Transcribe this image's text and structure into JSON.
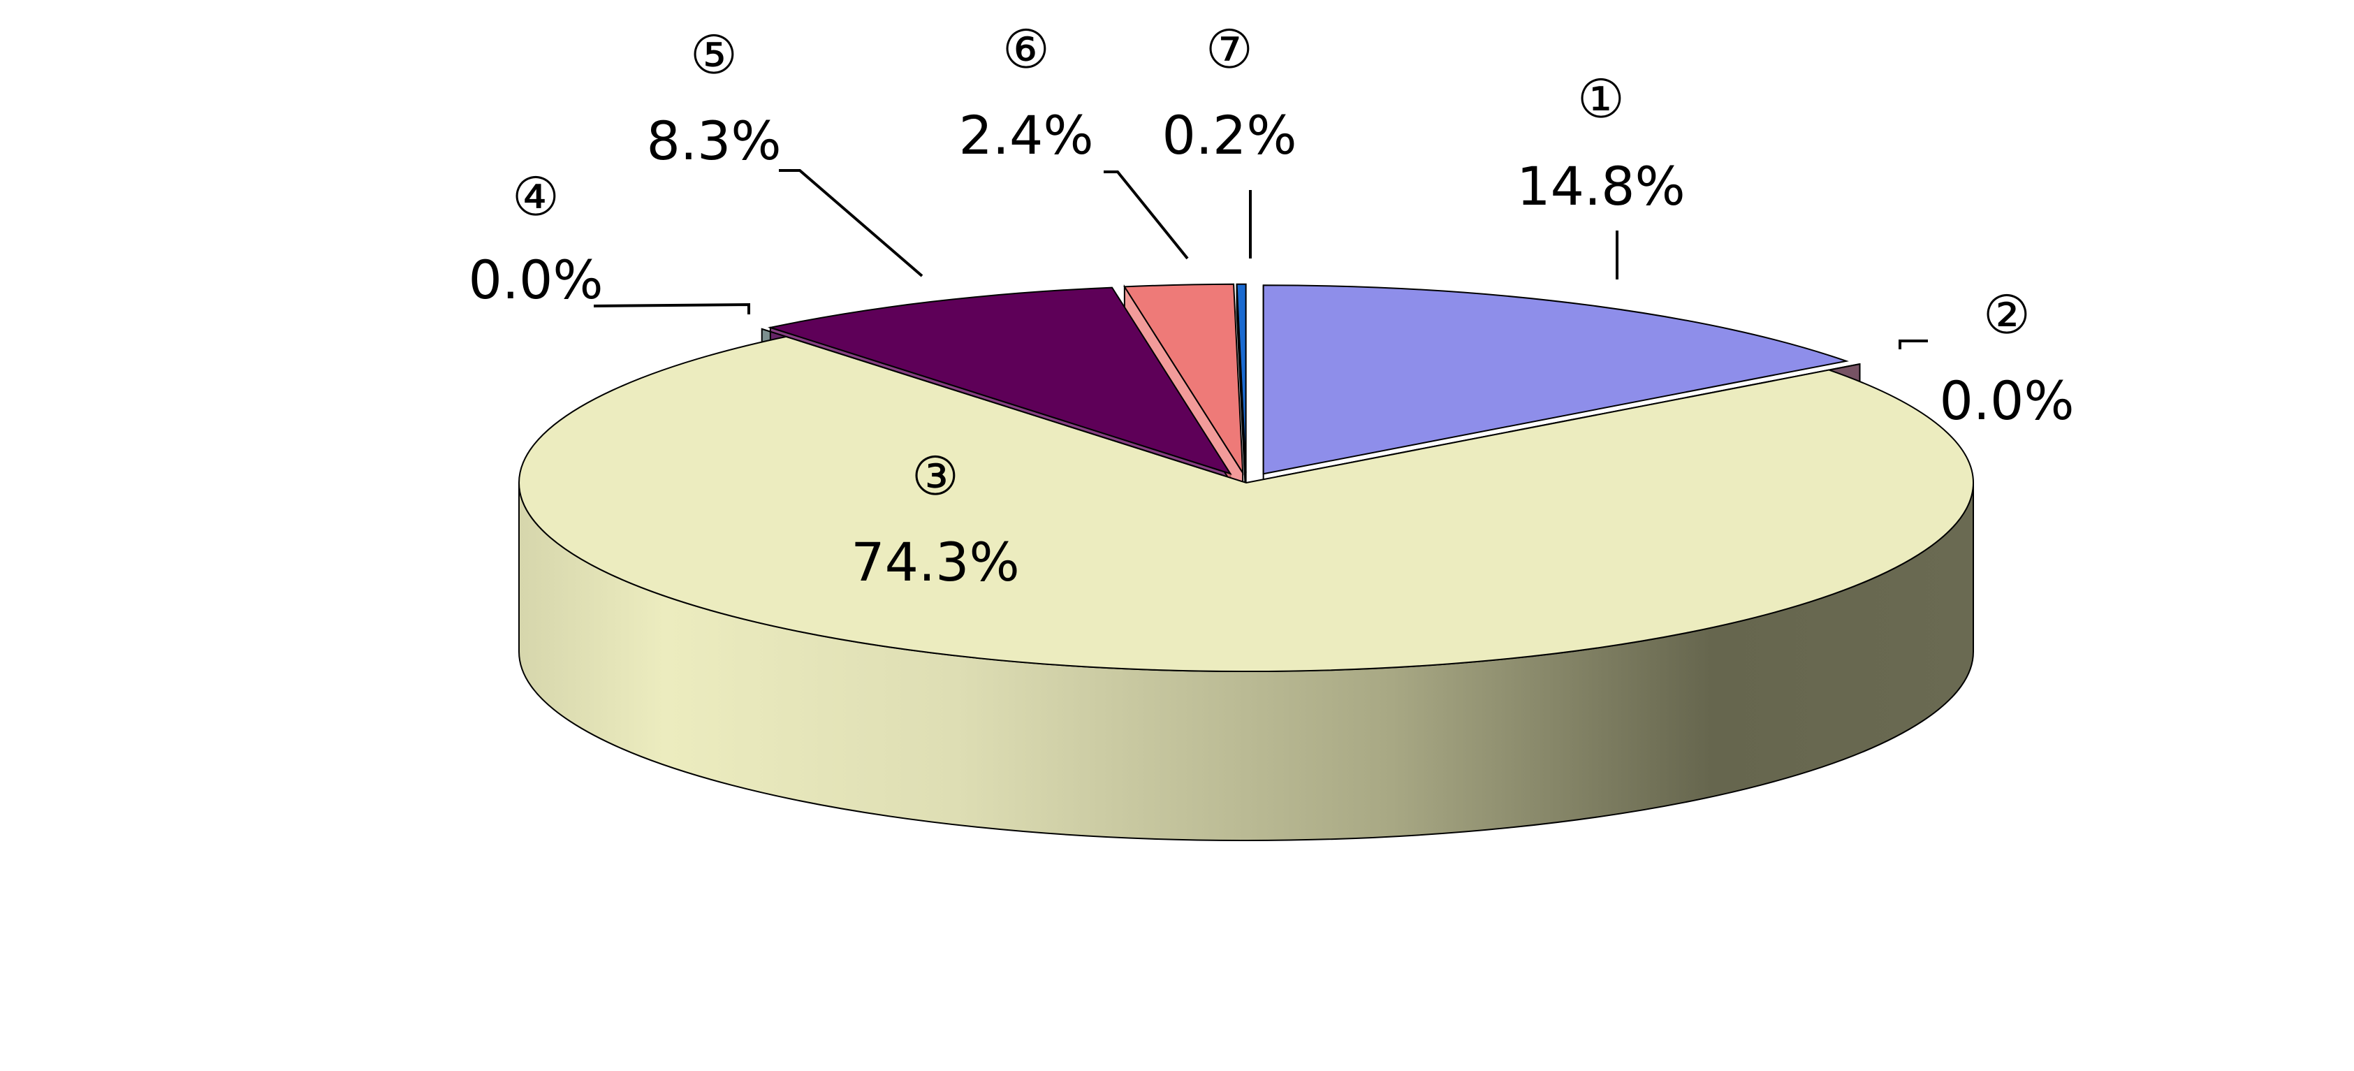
{
  "chart_data": {
    "type": "pie",
    "categories": [
      "①",
      "②",
      "③",
      "④",
      "⑤",
      "⑥",
      "⑦"
    ],
    "values": [
      14.8,
      0.0,
      74.3,
      0.0,
      8.3,
      2.4,
      0.2
    ],
    "value_labels": [
      "14.8%",
      "0.0%",
      "74.3%",
      "0.0%",
      "8.3%",
      "2.4%",
      "0.2%"
    ],
    "colors": [
      "#8e8eea",
      "#4a1a30",
      "#ececbf",
      "#506a6a",
      "#5e0058",
      "#ee7a78",
      "#1a6ad0"
    ]
  }
}
